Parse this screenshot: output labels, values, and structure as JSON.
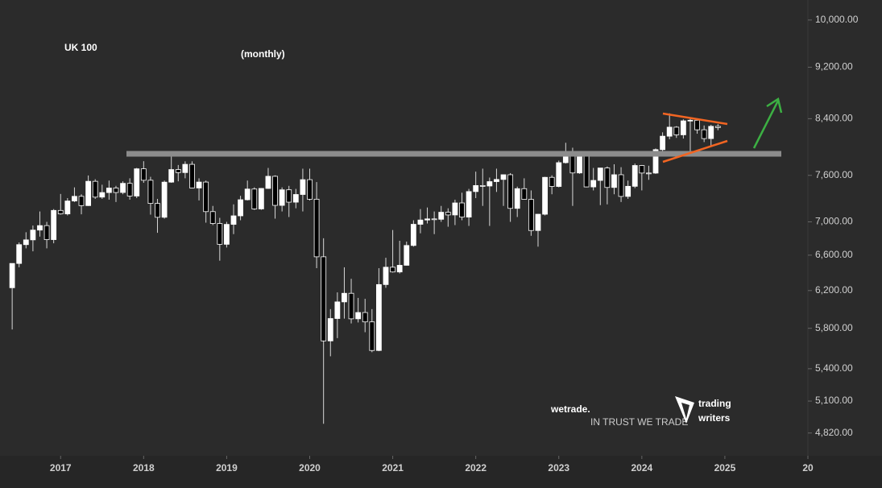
{
  "chart_data": {
    "type": "candlestick",
    "title": "UK 100",
    "subtitle": "(monthly)",
    "log_scale": true,
    "up_color": "#ffffff",
    "down_color": "#000000",
    "wick_color": "#d8d8d8",
    "x": [
      "2016-06",
      "2016-07",
      "2016-08",
      "2016-09",
      "2016-10",
      "2016-11",
      "2016-12",
      "2017-01",
      "2017-02",
      "2017-03",
      "2017-04",
      "2017-05",
      "2017-06",
      "2017-07",
      "2017-08",
      "2017-09",
      "2017-10",
      "2017-11",
      "2017-12",
      "2018-01",
      "2018-02",
      "2018-03",
      "2018-04",
      "2018-05",
      "2018-06",
      "2018-07",
      "2018-08",
      "2018-09",
      "2018-10",
      "2018-11",
      "2018-12",
      "2019-01",
      "2019-02",
      "2019-03",
      "2019-04",
      "2019-05",
      "2019-06",
      "2019-07",
      "2019-08",
      "2019-09",
      "2019-10",
      "2019-11",
      "2019-12",
      "2020-01",
      "2020-02",
      "2020-03",
      "2020-04",
      "2020-05",
      "2020-06",
      "2020-07",
      "2020-08",
      "2020-09",
      "2020-10",
      "2020-11",
      "2020-12",
      "2021-01",
      "2021-02",
      "2021-03",
      "2021-04",
      "2021-05",
      "2021-06",
      "2021-07",
      "2021-08",
      "2021-09",
      "2021-10",
      "2021-11",
      "2021-12",
      "2022-01",
      "2022-02",
      "2022-03",
      "2022-04",
      "2022-05",
      "2022-06",
      "2022-07",
      "2022-08",
      "2022-09",
      "2022-10",
      "2022-11",
      "2022-12",
      "2023-01",
      "2023-02",
      "2023-03",
      "2023-04",
      "2023-05",
      "2023-06",
      "2023-07",
      "2023-08",
      "2023-09",
      "2023-10",
      "2023-11",
      "2023-12",
      "2024-01",
      "2024-02",
      "2024-03",
      "2024-04",
      "2024-05",
      "2024-06",
      "2024-07",
      "2024-08",
      "2024-09",
      "2024-10",
      "2024-11",
      "2024-12"
    ],
    "open": [
      6231,
      6504,
      6724,
      6781,
      6899,
      6954,
      6784,
      7143,
      7099,
      7263,
      7323,
      7204,
      7520,
      7313,
      7372,
      7431,
      7373,
      7493,
      7327,
      7688,
      7534,
      7232,
      7057,
      7509,
      7678,
      7637,
      7749,
      7432,
      7510,
      7128,
      6980,
      6728,
      6969,
      7075,
      7279,
      7418,
      7162,
      7426,
      7587,
      7207,
      7408,
      7248,
      7347,
      7542,
      7286,
      6581,
      5672,
      5901,
      6077,
      6170,
      5898,
      5964,
      5866,
      5577,
      6266,
      6461,
      6407,
      6483,
      6714,
      6970,
      7023,
      7037,
      7032,
      7120,
      7086,
      7238,
      7059,
      7385,
      7464,
      7458,
      7516,
      7545,
      7608,
      7169,
      7423,
      7284,
      6894,
      7095,
      7573,
      7452,
      7772,
      7876,
      7632,
      7871,
      7446,
      7532,
      7699,
      7439,
      7608,
      7322,
      7454,
      7733,
      7631,
      7630,
      7953,
      8144,
      8275,
      8164,
      8368,
      8377,
      8237,
      8110,
      8287
    ],
    "high": [
      6505,
      6750,
      6873,
      6955,
      7130,
      7000,
      7160,
      7354,
      7300,
      7440,
      7350,
      7598,
      7548,
      7475,
      7530,
      7460,
      7520,
      7560,
      7700,
      7792,
      7580,
      7290,
      7530,
      7903,
      7740,
      7790,
      7790,
      7560,
      7530,
      7200,
      7050,
      7000,
      7220,
      7330,
      7530,
      7440,
      7430,
      7700,
      7600,
      7440,
      7460,
      7420,
      7690,
      7690,
      7510,
      6800,
      6000,
      6180,
      6460,
      6330,
      6120,
      6110,
      6000,
      6450,
      6570,
      6900,
      6770,
      6760,
      7020,
      7160,
      7180,
      7130,
      7200,
      7170,
      7280,
      7370,
      7420,
      7650,
      7690,
      7570,
      7690,
      7610,
      7630,
      7450,
      7560,
      7400,
      7100,
      7580,
      7600,
      7800,
      8050,
      7980,
      7920,
      7910,
      7700,
      7700,
      7720,
      7750,
      7710,
      7530,
      7760,
      7740,
      7730,
      7970,
      8200,
      8480,
      8290,
      8390,
      8400,
      8390,
      8300,
      8310,
      8320
    ],
    "low": [
      5788,
      6460,
      6680,
      6645,
      6820,
      6680,
      6740,
      7090,
      7080,
      7250,
      7094,
      7200,
      7290,
      7290,
      7280,
      7250,
      7350,
      7280,
      7300,
      7500,
      7090,
      6866,
      7040,
      7500,
      7520,
      7560,
      7430,
      7270,
      6990,
      6960,
      6536,
      6690,
      6850,
      7020,
      7270,
      7150,
      7150,
      7420,
      7040,
      7130,
      7060,
      7170,
      7130,
      7270,
      6450,
      4899,
      5520,
      5700,
      5900,
      5850,
      5860,
      5760,
      5560,
      5570,
      6230,
      6400,
      6390,
      6480,
      6700,
      6860,
      6980,
      6850,
      7000,
      6940,
      6960,
      7020,
      6950,
      7300,
      7200,
      6950,
      7380,
      7200,
      7000,
      7060,
      7280,
      6830,
      6700,
      7080,
      7350,
      7440,
      7760,
      7200,
      7620,
      7440,
      7400,
      7210,
      7220,
      7350,
      7250,
      7290,
      7430,
      7400,
      7540,
      7620,
      7900,
      8100,
      8120,
      8110,
      7920,
      8180,
      8060,
      8000,
      8230
    ],
    "close": [
      6504,
      6724,
      6781,
      6899,
      6954,
      6784,
      7143,
      7099,
      7263,
      7323,
      7204,
      7520,
      7313,
      7372,
      7431,
      7373,
      7493,
      7327,
      7688,
      7534,
      7232,
      7057,
      7509,
      7678,
      7637,
      7749,
      7432,
      7510,
      7128,
      6980,
      6728,
      6969,
      7075,
      7279,
      7418,
      7162,
      7426,
      7587,
      7207,
      7408,
      7248,
      7347,
      7542,
      7286,
      6581,
      5672,
      5901,
      6077,
      6170,
      5898,
      5964,
      5866,
      5577,
      6266,
      6461,
      6407,
      6483,
      6714,
      6970,
      7023,
      7037,
      7032,
      7120,
      7086,
      7238,
      7059,
      7385,
      7464,
      7458,
      7516,
      7545,
      7608,
      7169,
      7423,
      7284,
      6894,
      7095,
      7573,
      7452,
      7772,
      7876,
      7632,
      7871,
      7446,
      7532,
      7699,
      7439,
      7608,
      7322,
      7454,
      7733,
      7631,
      7630,
      7953,
      8144,
      8275,
      8164,
      8368,
      8377,
      8237,
      8110,
      8287,
      8270
    ],
    "xlim": [
      2016.27,
      2026.0
    ],
    "xticks": [
      2017,
      2018,
      2019,
      2020,
      2021,
      2022,
      2023,
      2024,
      2025,
      {
        "value": 2026,
        "label": "20"
      }
    ],
    "ylim": [
      4630,
      10360
    ],
    "yticks": [
      {
        "value": 10000,
        "label": "10,000.00"
      },
      {
        "value": 9200,
        "label": "9,200.00"
      },
      {
        "value": 8400,
        "label": "8,400.00"
      },
      {
        "value": 7600,
        "label": "7,600.00"
      },
      {
        "value": 7000,
        "label": "7,000.00"
      },
      {
        "value": 6600,
        "label": "6,600.00"
      },
      {
        "value": 6200,
        "label": "6,200.00"
      },
      {
        "value": 5800,
        "label": "5,800.00"
      },
      {
        "value": 5400,
        "label": "5,400.00"
      },
      {
        "value": 5100,
        "label": "5,100.00"
      },
      {
        "value": 4820,
        "label": "4,820.00"
      }
    ]
  },
  "branding": {
    "wetrade": "wetrade.",
    "wetrade_tagline": "IN TRUST WE TRADE",
    "tw_line1": "trading",
    "tw_line2": "writers"
  }
}
